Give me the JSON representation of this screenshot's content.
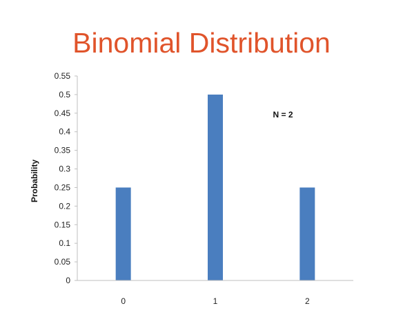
{
  "chart_data": {
    "type": "bar",
    "title": "Binomial Distribution",
    "xlabel": "",
    "ylabel": "Probability",
    "categories": [
      "0",
      "1",
      "2"
    ],
    "values": [
      0.25,
      0.5,
      0.25
    ],
    "ylim": [
      0,
      0.55
    ],
    "yticks": [
      "0",
      "0.05",
      "0.1",
      "0.15",
      "0.2",
      "0.25",
      "0.3",
      "0.35",
      "0.4",
      "0.45",
      "0.5",
      "0.55"
    ],
    "annotation": "N = 2",
    "grid": false,
    "legend": "none"
  },
  "colors": {
    "title": "#e0542b",
    "bar": "#4a7ebf",
    "axis": "#bfbfbf"
  }
}
